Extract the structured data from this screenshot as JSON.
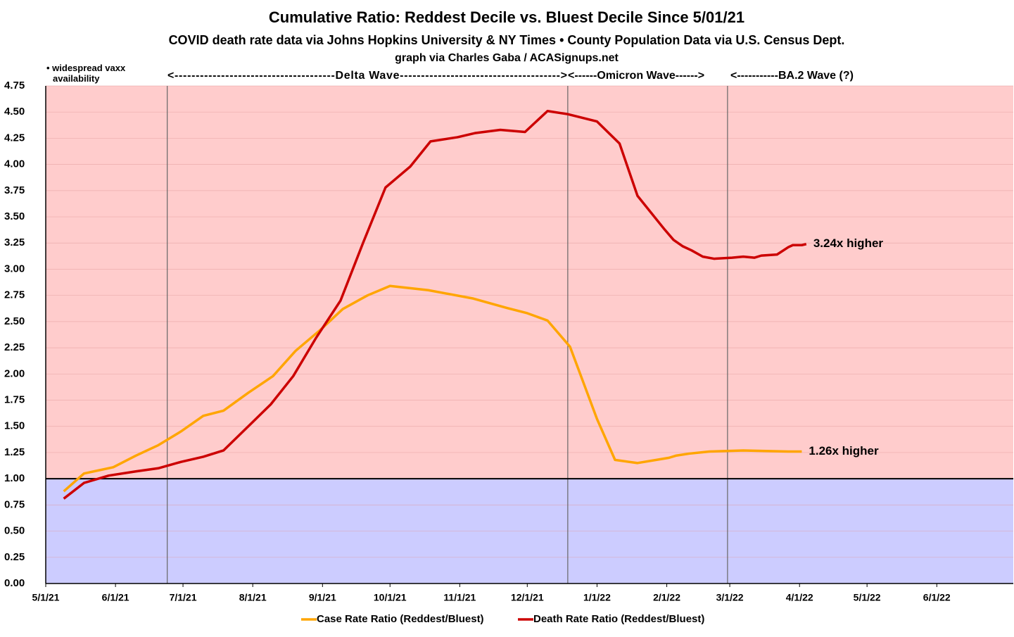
{
  "chart_data": {
    "type": "line",
    "title": "Cumulative Ratio: Reddest Decile vs. Bluest Decile Since 5/01/21",
    "subtitle": "COVID death rate data via Johns Hopkins University & NY Times • County Population Data via U.S. Census Dept.",
    "credit": "graph via Charles Gaba / ACASignups.net",
    "annotations": [
      "• widespread vaxx\navailability",
      "<--------------------------------------Delta Wave-------------------------------------->",
      "<------Omicron Wave------>",
      "<-----------BA.2 Wave (?)"
    ],
    "xlim": [
      0,
      430
    ],
    "ylim": [
      0,
      4.75
    ],
    "xticks": [
      {
        "value": 0,
        "label": "5/1/21"
      },
      {
        "value": 31,
        "label": "6/1/21"
      },
      {
        "value": 61,
        "label": "7/1/21"
      },
      {
        "value": 92,
        "label": "8/1/21"
      },
      {
        "value": 123,
        "label": "9/1/21"
      },
      {
        "value": 153,
        "label": "10/1/21"
      },
      {
        "value": 184,
        "label": "11/1/21"
      },
      {
        "value": 214,
        "label": "12/1/21"
      },
      {
        "value": 245,
        "label": "1/1/22"
      },
      {
        "value": 276,
        "label": "2/1/22"
      },
      {
        "value": 304,
        "label": "3/1/22"
      },
      {
        "value": 335,
        "label": "4/1/22"
      },
      {
        "value": 365,
        "label": "5/1/22"
      },
      {
        "value": 396,
        "label": "6/1/22"
      }
    ],
    "yticks": [
      {
        "value": 0,
        "label": "0.00"
      },
      {
        "value": 0.25,
        "label": "0.25"
      },
      {
        "value": 0.5,
        "label": "0.50"
      },
      {
        "value": 0.75,
        "label": "0.75"
      },
      {
        "value": 1,
        "label": "1.00"
      },
      {
        "value": 1.25,
        "label": "1.25"
      },
      {
        "value": 1.5,
        "label": "1.50"
      },
      {
        "value": 1.75,
        "label": "1.75"
      },
      {
        "value": 2,
        "label": "2.00"
      },
      {
        "value": 2.25,
        "label": "2.25"
      },
      {
        "value": 2.5,
        "label": "2.50"
      },
      {
        "value": 2.75,
        "label": "2.75"
      },
      {
        "value": 3,
        "label": "3.00"
      },
      {
        "value": 3.25,
        "label": "3.25"
      },
      {
        "value": 3.5,
        "label": "3.50"
      },
      {
        "value": 3.75,
        "label": "3.75"
      },
      {
        "value": 4,
        "label": "4.00"
      },
      {
        "value": 4.25,
        "label": "4.25"
      },
      {
        "value": 4.5,
        "label": "4.50"
      },
      {
        "value": 4.75,
        "label": "4.75"
      }
    ],
    "grid": true,
    "threshold": 1,
    "above_color": "#ffcccc",
    "below_color": "#ccccff",
    "reference_lines": [
      54,
      232,
      303
    ],
    "series": [
      {
        "name": "Case Rate Ratio (Reddest/Bluest)",
        "color": "#ffa500",
        "end_label": "1.26x higher",
        "x": [
          8,
          17,
          30,
          40,
          50,
          60,
          70,
          79,
          90,
          101,
          111,
          122,
          132,
          143,
          153,
          170,
          190,
          205,
          214,
          223,
          233,
          245,
          253,
          263,
          277,
          280,
          286,
          295,
          310,
          330,
          336
        ],
        "values": [
          0.88,
          1.05,
          1.11,
          1.22,
          1.32,
          1.45,
          1.6,
          1.65,
          1.82,
          1.98,
          2.22,
          2.42,
          2.62,
          2.75,
          2.84,
          2.8,
          2.72,
          2.63,
          2.58,
          2.51,
          2.26,
          1.57,
          1.18,
          1.15,
          1.2,
          1.22,
          1.24,
          1.26,
          1.27,
          1.26,
          1.26
        ]
      },
      {
        "name": "Death Rate Ratio (Reddest/Bluest)",
        "color": "#cc0000",
        "end_label": "3.24x higher",
        "x": [
          8,
          17,
          28,
          40,
          50,
          60,
          70,
          79,
          90,
          100,
          110,
          120,
          131,
          141,
          151,
          162,
          171,
          183,
          191,
          202,
          213,
          223,
          232,
          245,
          255,
          263,
          275,
          279,
          283,
          287,
          292,
          297,
          305,
          310,
          315,
          318,
          325,
          330,
          332,
          336,
          338
        ],
        "values": [
          0.81,
          0.96,
          1.03,
          1.07,
          1.1,
          1.16,
          1.21,
          1.27,
          1.5,
          1.71,
          1.98,
          2.34,
          2.7,
          3.25,
          3.78,
          3.98,
          4.22,
          4.26,
          4.3,
          4.33,
          4.31,
          4.51,
          4.48,
          4.41,
          4.2,
          3.7,
          3.38,
          3.28,
          3.22,
          3.18,
          3.12,
          3.1,
          3.11,
          3.12,
          3.11,
          3.13,
          3.14,
          3.21,
          3.23,
          3.23,
          3.24
        ]
      }
    ]
  }
}
